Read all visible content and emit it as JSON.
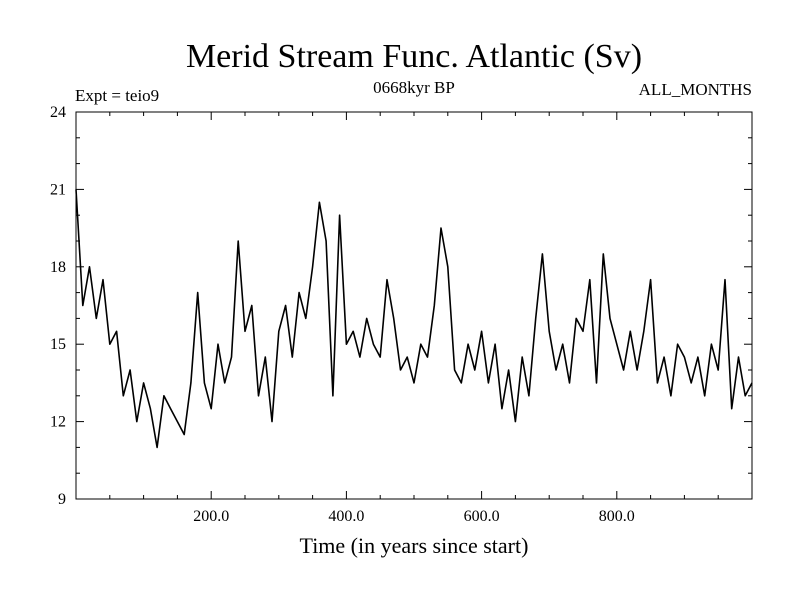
{
  "chart_data": {
    "type": "line",
    "title": "Merid Stream Func. Atlantic (Sv)",
    "left_label": "Expt = teio9",
    "center_label": "0668kyr BP",
    "right_label": "ALL_MONTHS",
    "xlabel": "Time (in years since start)",
    "ylabel": "",
    "xlim": [
      0,
      1000
    ],
    "ylim": [
      9,
      24
    ],
    "x_ticks": [
      200,
      400,
      600,
      800
    ],
    "x_tick_labels": [
      "200.0",
      "400.0",
      "600.0",
      "800.0"
    ],
    "y_ticks": [
      9,
      12,
      15,
      18,
      21,
      24
    ],
    "y_tick_labels": [
      "9",
      "12",
      "15",
      "18",
      "21",
      "24"
    ],
    "series": [
      {
        "name": "Merid Stream Func. Atlantic",
        "color": "#000000",
        "x": [
          0,
          10,
          20,
          30,
          40,
          50,
          60,
          70,
          80,
          90,
          100,
          110,
          120,
          130,
          140,
          150,
          160,
          170,
          180,
          190,
          200,
          210,
          220,
          230,
          240,
          250,
          260,
          270,
          280,
          290,
          300,
          310,
          320,
          330,
          340,
          350,
          360,
          370,
          380,
          390,
          400,
          410,
          420,
          430,
          440,
          450,
          460,
          470,
          480,
          490,
          500,
          510,
          520,
          530,
          540,
          550,
          560,
          570,
          580,
          590,
          600,
          610,
          620,
          630,
          640,
          650,
          660,
          670,
          680,
          690,
          700,
          710,
          720,
          730,
          740,
          750,
          760,
          770,
          780,
          790,
          800,
          810,
          820,
          830,
          840,
          850,
          860,
          870,
          880,
          890,
          900,
          910,
          920,
          930,
          940,
          950,
          960,
          970,
          980,
          990,
          1000
        ],
        "values": [
          21.0,
          16.5,
          18.0,
          16.0,
          17.5,
          15.0,
          15.5,
          13.0,
          14.0,
          12.0,
          13.5,
          12.5,
          11.0,
          13.0,
          12.5,
          12.0,
          11.5,
          13.5,
          17.0,
          13.5,
          12.5,
          15.0,
          13.5,
          14.5,
          19.0,
          15.5,
          16.5,
          13.0,
          14.5,
          12.0,
          15.5,
          16.5,
          14.5,
          17.0,
          16.0,
          18.0,
          20.5,
          19.0,
          13.0,
          20.0,
          15.0,
          15.5,
          14.5,
          16.0,
          15.0,
          14.5,
          17.5,
          16.0,
          14.0,
          14.5,
          13.5,
          15.0,
          14.5,
          16.5,
          19.5,
          18.0,
          14.0,
          13.5,
          15.0,
          14.0,
          15.5,
          13.5,
          15.0,
          12.5,
          14.0,
          12.0,
          14.5,
          13.0,
          16.0,
          18.5,
          15.5,
          14.0,
          15.0,
          13.5,
          16.0,
          15.5,
          17.5,
          13.5,
          18.5,
          16.0,
          15.0,
          14.0,
          15.5,
          14.0,
          15.5,
          17.5,
          13.5,
          14.5,
          13.0,
          15.0,
          14.5,
          13.5,
          14.5,
          13.0,
          15.0,
          14.0,
          17.5,
          12.5,
          14.5,
          13.0,
          13.5
        ]
      }
    ],
    "grid": false
  }
}
